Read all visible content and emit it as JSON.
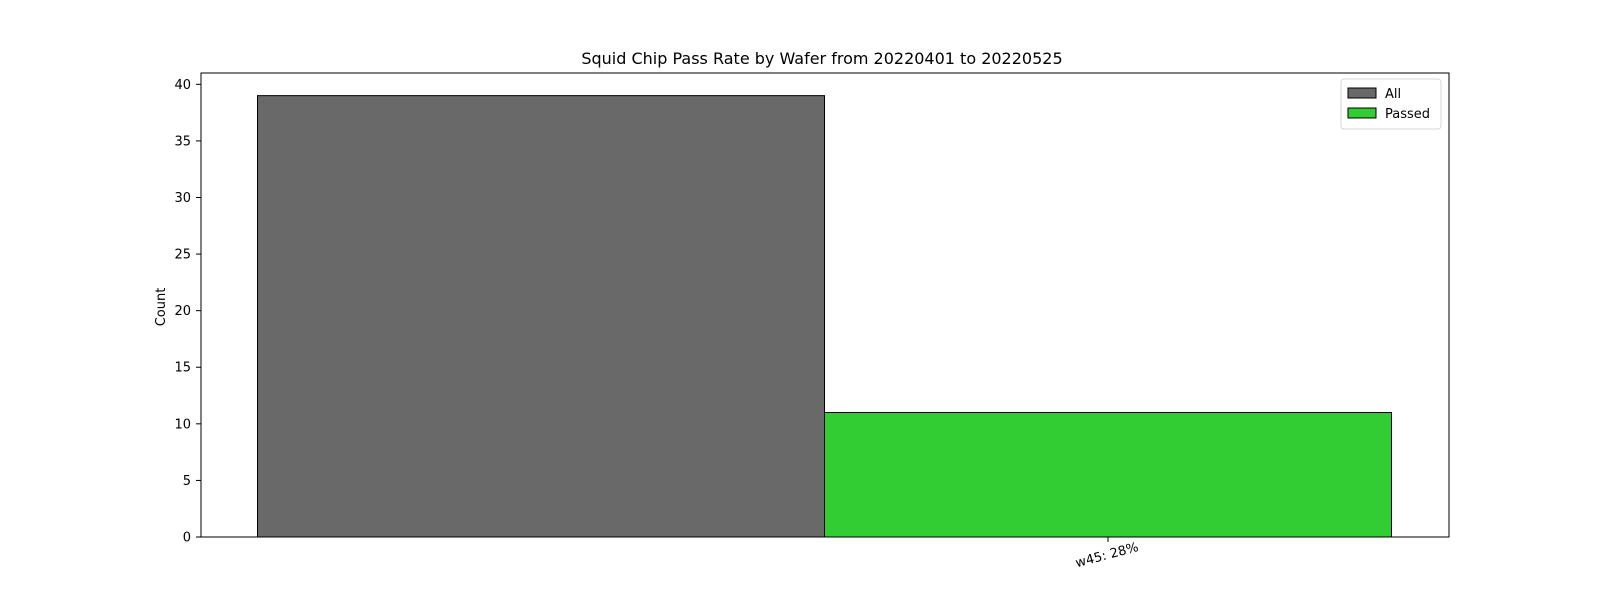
{
  "chart_data": {
    "type": "bar",
    "title": "Squid Chip Pass Rate by Wafer from 20220401 to 20220525",
    "xlabel": "",
    "ylabel": "Count",
    "categories": [
      "w45: 28%"
    ],
    "series": [
      {
        "name": "All",
        "values": [
          39
        ],
        "color": "#696969"
      },
      {
        "name": "Passed",
        "values": [
          11
        ],
        "color": "#32cd32"
      }
    ],
    "ylim": [
      0,
      41
    ],
    "yticks": [
      0,
      5,
      10,
      15,
      20,
      25,
      30,
      35,
      40
    ],
    "grid": false,
    "legend_position": "top-right"
  }
}
